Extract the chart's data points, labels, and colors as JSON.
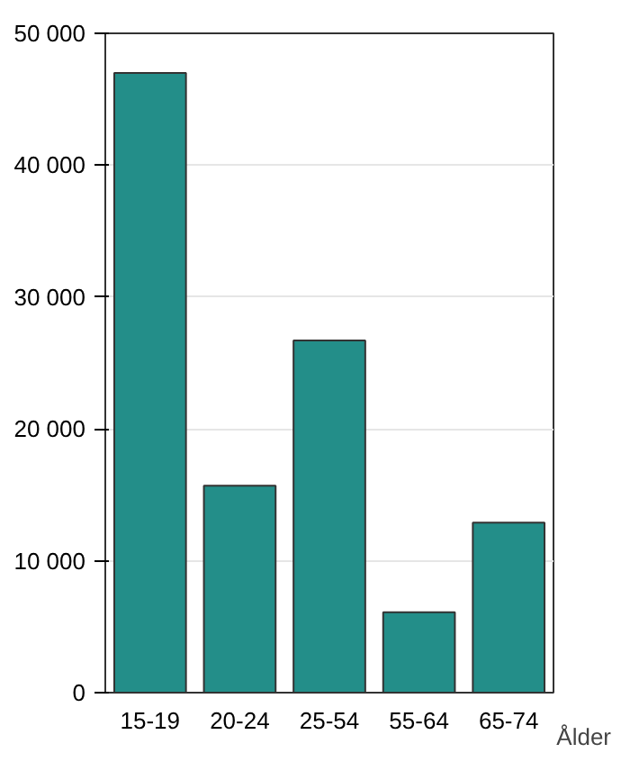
{
  "chart_data": {
    "type": "bar",
    "xlabel": "Ålder",
    "categories": [
      "15-19",
      "20-24",
      "25-54",
      "55-64",
      "65-74"
    ],
    "values": [
      47000,
      15700,
      26700,
      6100,
      12900
    ],
    "color": "#238e89",
    "ylim": [
      0,
      50000
    ],
    "yticks": [
      0,
      {
        "value": 10000,
        "label": "10 000"
      },
      {
        "value": 20000,
        "label": "20 000"
      },
      {
        "value": 30000,
        "label": "30 000"
      },
      {
        "value": 40000,
        "label": "40 000"
      },
      {
        "value": 50000,
        "label": "50 000"
      }
    ],
    "grid": "y"
  }
}
